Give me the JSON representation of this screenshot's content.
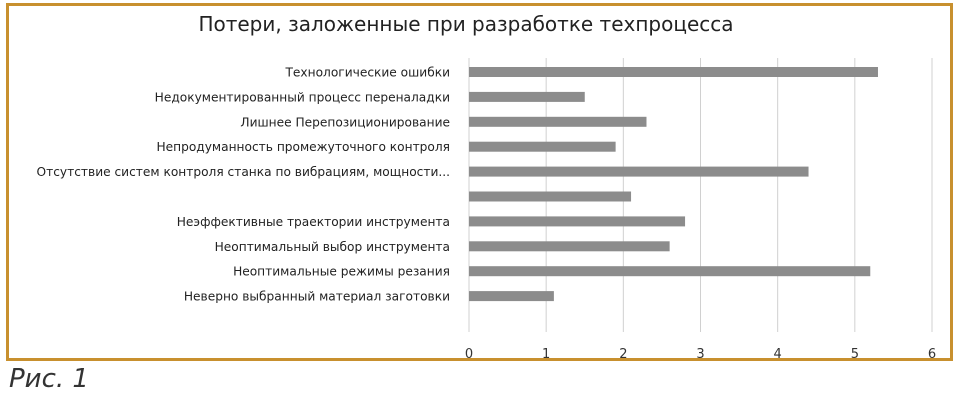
{
  "figure": {
    "caption": "Рис. 1",
    "frame_color": "#c8902e"
  },
  "chart_data": {
    "type": "bar",
    "orientation": "horizontal",
    "title": "Потери, заложенные при разработке техпроцесса",
    "xlabel": "",
    "ylabel": "",
    "xlim": [
      0,
      6
    ],
    "xticks": [
      "0",
      "1",
      "2",
      "3",
      "4",
      "5",
      "6"
    ],
    "grid": "vertical",
    "bar_color": "#8c8c8c",
    "categories": [
      "Технологические ошибки",
      "Недокументированный процесс переналадки",
      "Лишнее Перепозиционирование",
      "Непродуманность  промежуточного  контроля",
      "Отсутствие систем контроля станка по вибрациям, мощности...",
      "",
      "Неэффективные траектории инструмента",
      "Неоптимальный выбор инструмента",
      "Неоптимальные режимы резания",
      "Неверно выбранный материал заготовки"
    ],
    "values": [
      5.3,
      1.5,
      2.3,
      1.9,
      4.4,
      2.1,
      2.8,
      2.6,
      5.2,
      1.1
    ]
  }
}
